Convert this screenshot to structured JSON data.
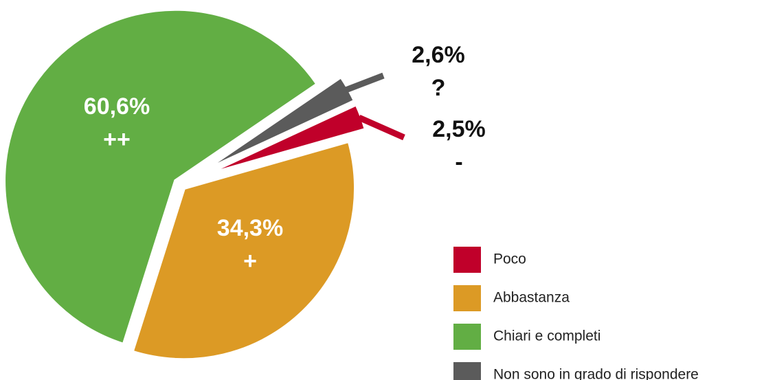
{
  "chart_data": {
    "type": "pie",
    "categories": [
      "Poco",
      "Abbastanza",
      "Chiari e completi",
      "Non sono in grado di rispondere"
    ],
    "values": [
      2.5,
      34.3,
      60.6,
      2.6
    ],
    "value_labels": [
      "2,5%",
      "34,3%",
      "60,6%",
      "2,6%"
    ],
    "symbols": [
      "-",
      "+",
      "++",
      "?"
    ],
    "colors": [
      "#c0002a",
      "#dc9a25",
      "#62ae44",
      "#5b5b5b"
    ]
  }
}
